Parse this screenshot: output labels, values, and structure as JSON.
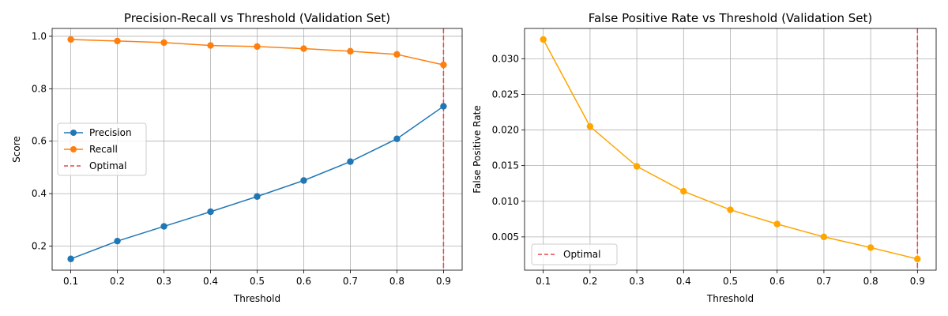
{
  "chart_data": [
    {
      "type": "line",
      "title": "Precision-Recall vs Threshold (Validation Set)",
      "xlabel": "Threshold",
      "ylabel": "Score",
      "x": [
        0.1,
        0.2,
        0.3,
        0.4,
        0.5,
        0.6,
        0.7,
        0.8,
        0.9
      ],
      "x_ticks": [
        "0.1",
        "0.2",
        "0.3",
        "0.4",
        "0.5",
        "0.6",
        "0.7",
        "0.8",
        "0.9"
      ],
      "y_ticks": [
        "0.2",
        "0.4",
        "0.6",
        "0.8",
        "1.0"
      ],
      "y_tick_values": [
        0.2,
        0.4,
        0.6,
        0.8,
        1.0
      ],
      "xlim": [
        0.06,
        0.94
      ],
      "ylim": [
        0.108,
        1.03
      ],
      "grid": true,
      "legend_position": "center-left",
      "series": [
        {
          "name": "Precision",
          "color": "#1f77b4",
          "values": [
            0.151,
            0.219,
            0.275,
            0.331,
            0.389,
            0.45,
            0.522,
            0.609,
            0.733
          ]
        },
        {
          "name": "Recall",
          "color": "#ff7f0e",
          "values": [
            0.988,
            0.982,
            0.976,
            0.965,
            0.961,
            0.953,
            0.943,
            0.931,
            0.891
          ]
        }
      ],
      "reference_line": {
        "name": "Optimal",
        "x": 0.9,
        "color": "#e8474a",
        "style": "dashed"
      }
    },
    {
      "type": "line",
      "title": "False Positive Rate vs Threshold (Validation Set)",
      "xlabel": "Threshold",
      "ylabel": "False Positive Rate",
      "x": [
        0.1,
        0.2,
        0.3,
        0.4,
        0.5,
        0.6,
        0.7,
        0.8,
        0.9
      ],
      "x_ticks": [
        "0.1",
        "0.2",
        "0.3",
        "0.4",
        "0.5",
        "0.6",
        "0.7",
        "0.8",
        "0.9"
      ],
      "y_ticks": [
        "0.005",
        "0.010",
        "0.015",
        "0.020",
        "0.025",
        "0.030"
      ],
      "y_tick_values": [
        0.005,
        0.01,
        0.015,
        0.02,
        0.025,
        0.03
      ],
      "xlim": [
        0.06,
        0.94
      ],
      "ylim": [
        0.00033,
        0.03425
      ],
      "grid": true,
      "legend_position": "bottom-left",
      "series": [
        {
          "name": "",
          "color": "#ffa500",
          "values": [
            0.0327,
            0.0205,
            0.0149,
            0.0114,
            0.0088,
            0.0068,
            0.005,
            0.0035,
            0.0019
          ]
        }
      ],
      "reference_line": {
        "name": "Optimal",
        "x": 0.9,
        "color": "#e8474a",
        "style": "dashed"
      }
    }
  ]
}
